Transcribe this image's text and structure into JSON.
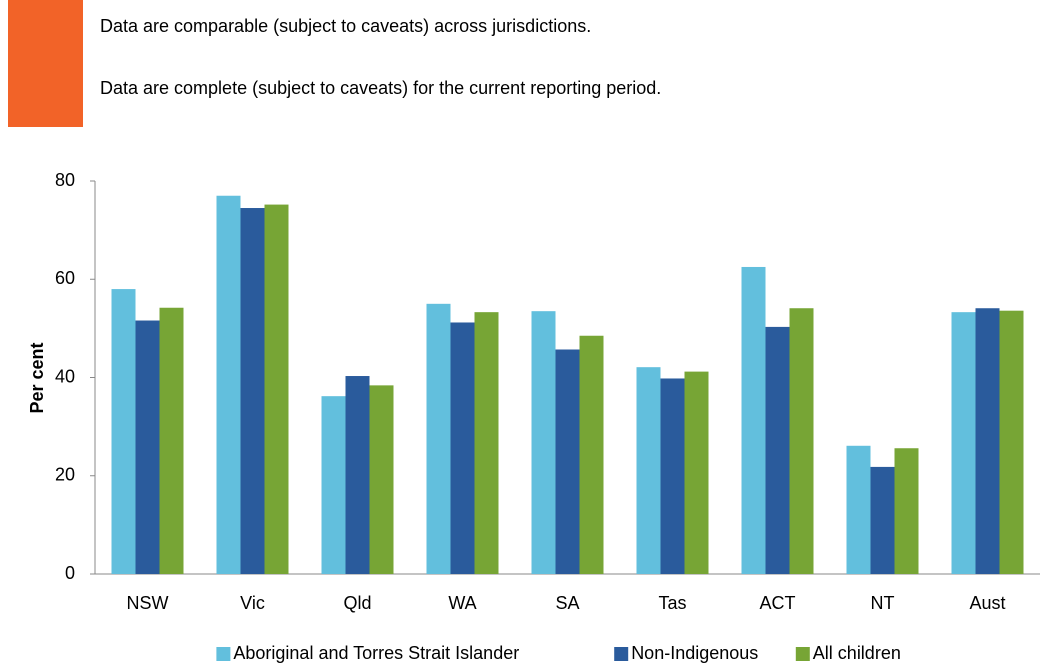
{
  "notes": [
    "Data are comparable (subject to caveats) across jurisdictions.",
    "Data are complete (subject to caveats) for the current reporting period."
  ],
  "chart_data": {
    "type": "bar",
    "ylabel": "Per cent",
    "categories": [
      "NSW",
      "Vic",
      "Qld",
      "WA",
      "SA",
      "Tas",
      "ACT",
      "NT",
      "Aust"
    ],
    "series": [
      {
        "name": "Aboriginal and Torres Strait Islander",
        "color": "#62bfdd",
        "values": [
          58,
          77,
          36.2,
          55,
          53.5,
          42.1,
          62.5,
          26.1,
          53.3
        ]
      },
      {
        "name": "Non-Indigenous",
        "color": "#2a5b9c",
        "values": [
          51.6,
          74.5,
          40.3,
          51.2,
          45.7,
          39.8,
          50.3,
          21.8,
          54.1
        ]
      },
      {
        "name": "All children",
        "color": "#77a535",
        "values": [
          54.2,
          75.2,
          38.4,
          53.3,
          48.5,
          41.2,
          54.1,
          25.6,
          53.6
        ]
      }
    ],
    "ylim": [
      0,
      80
    ],
    "yticks": [
      0,
      20,
      40,
      60,
      80
    ],
    "grid": false,
    "legend": "bottom"
  }
}
